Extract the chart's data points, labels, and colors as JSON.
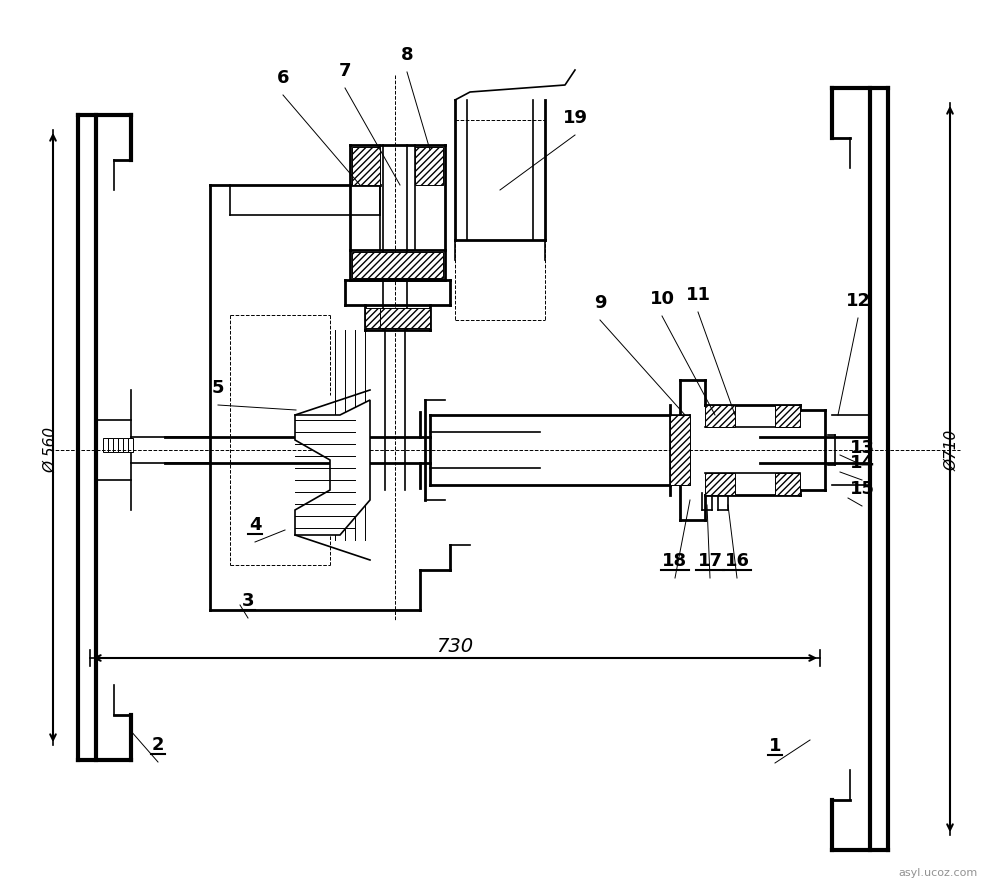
{
  "bg_color": "#ffffff",
  "line_color": "#000000",
  "dim_730": "730",
  "dim_560": "Ø 560",
  "dim_710": "Ø710",
  "watermark": "asyl.ucoz.com",
  "figsize": [
    9.99,
    8.96
  ],
  "dpi": 100
}
